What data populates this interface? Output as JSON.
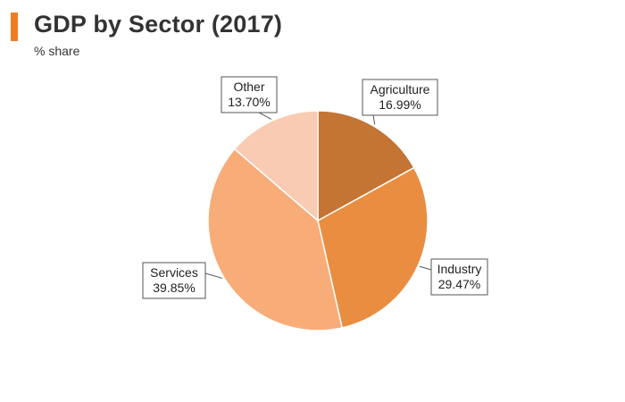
{
  "header": {
    "title": "GDP by Sector (2017)",
    "subtitle": "% share",
    "accent_color": "#f07c22"
  },
  "chart_data": {
    "type": "pie",
    "title": "GDP by Sector (2017)",
    "subtitle": "% share",
    "start_angle_deg": 0,
    "direction": "clockwise",
    "slices": [
      {
        "label": "Agriculture",
        "value": 16.99,
        "value_label": "16.99%",
        "color": "#c47433"
      },
      {
        "label": "Industry",
        "value": 29.47,
        "value_label": "29.47%",
        "color": "#e98e41"
      },
      {
        "label": "Services",
        "value": 39.85,
        "value_label": "39.85%",
        "color": "#f8ac78"
      },
      {
        "label": "Other",
        "value": 13.7,
        "value_label": "13.70%",
        "color": "#f9cbb2"
      }
    ]
  }
}
